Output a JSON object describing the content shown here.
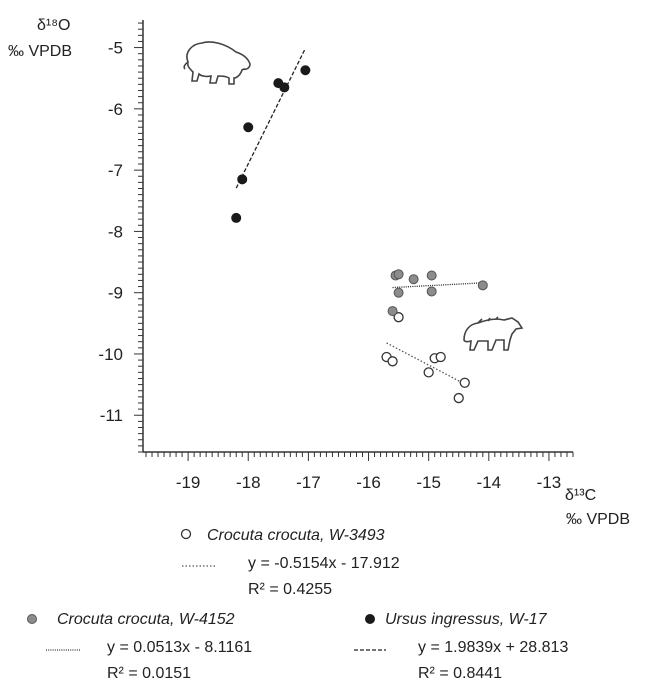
{
  "chart_data": {
    "type": "scatter",
    "x_axis": {
      "title_line1": "δ¹³C",
      "title_line2": "‰ VPDB",
      "range": [
        -19.75,
        -12.6
      ],
      "ticks": [
        -19,
        -18,
        -17,
        -16,
        -15,
        -14,
        -13
      ],
      "tick_labels": [
        "-19",
        "-18",
        "-17",
        "-16",
        "-15",
        "-14",
        "-13"
      ]
    },
    "y_axis": {
      "title_line1": "δ¹⁸O",
      "title_line2": "‰ VPDB",
      "range": [
        -11.6,
        -4.55
      ],
      "ticks": [
        -5,
        -6,
        -7,
        -8,
        -9,
        -10,
        -11
      ],
      "tick_labels": [
        "-5",
        "-6",
        "-7",
        "-8",
        "-9",
        "-10",
        "-11"
      ]
    },
    "grid": false,
    "series": [
      {
        "name": "Crocuta crocuta, W-3493",
        "marker": "open-circle",
        "color": "#333333",
        "trend_style": "dotted",
        "equation": "y = -0.5154x - 17.912",
        "r2": "R² = 0.4255",
        "trend": {
          "slope": -0.5154,
          "intercept": -17.912,
          "x_range": [
            -15.7,
            -14.4
          ]
        },
        "points": [
          [
            -15.7,
            -10.05
          ],
          [
            -15.6,
            -10.12
          ],
          [
            -15.5,
            -9.4
          ],
          [
            -15.0,
            -10.3
          ],
          [
            -14.9,
            -10.07
          ],
          [
            -14.8,
            -10.05
          ],
          [
            -14.5,
            -10.72
          ],
          [
            -14.4,
            -10.47
          ]
        ]
      },
      {
        "name": "Crocuta crocuta, W-4152",
        "marker": "grey-circle",
        "color": "#8c8c8c",
        "trend_style": "densely-dotted",
        "equation": "y = 0.0513x - 8.1161",
        "r2": "R² = 0.0151",
        "trend": {
          "slope": 0.0513,
          "intercept": -8.1161,
          "x_range": [
            -15.6,
            -14.1
          ]
        },
        "points": [
          [
            -15.6,
            -9.3
          ],
          [
            -15.55,
            -8.72
          ],
          [
            -15.5,
            -8.7
          ],
          [
            -15.5,
            -9.0
          ],
          [
            -15.25,
            -8.78
          ],
          [
            -14.95,
            -8.72
          ],
          [
            -14.95,
            -8.98
          ],
          [
            -14.1,
            -8.88
          ]
        ]
      },
      {
        "name": "Ursus ingressus, W-17",
        "marker": "black-circle",
        "color": "#1a1a1a",
        "trend_style": "dashed",
        "equation": "y = 1.9839x + 28.813",
        "r2": "R² = 0.8441",
        "trend": {
          "slope": 1.9839,
          "intercept": 28.813,
          "x_range": [
            -18.2,
            -17.05
          ]
        },
        "points": [
          [
            -18.2,
            -7.78
          ],
          [
            -18.1,
            -7.15
          ],
          [
            -18.0,
            -6.3
          ],
          [
            -17.5,
            -5.58
          ],
          [
            -17.4,
            -5.65
          ],
          [
            -17.05,
            -5.37
          ]
        ]
      }
    ]
  }
}
